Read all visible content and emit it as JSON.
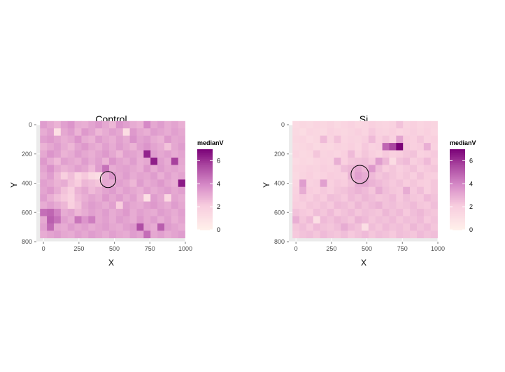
{
  "chart_data": [
    {
      "type": "heatmap",
      "title": "Control",
      "xlabel": "X",
      "ylabel": "Y",
      "xlim": [
        -50,
        1000
      ],
      "ylim": [
        0,
        800
      ],
      "y_reversed": true,
      "x_ticks": [
        0,
        250,
        500,
        750,
        1000
      ],
      "y_ticks": [
        0,
        200,
        400,
        600,
        800
      ],
      "x_tick_labels": [
        "0",
        "250",
        "500",
        "750",
        "1000"
      ],
      "y_tick_labels": [
        "0",
        "200",
        "400",
        "600",
        "800"
      ],
      "grid": true,
      "legend_position": "right",
      "legend": {
        "title": "medianV",
        "min": 0,
        "max": 7,
        "ticks": [
          0,
          2,
          4,
          6
        ],
        "tick_labels": [
          "0",
          "2",
          "4",
          "6"
        ],
        "low_color": "#fff0ea",
        "high_color": "#7a0177"
      },
      "x_centers": [
        0,
        48.7,
        97.4,
        146.1,
        194.7,
        243.4,
        292.1,
        340.8,
        389.5,
        438.2,
        486.8,
        535.5,
        584.2,
        632.9,
        681.6,
        730.3,
        778.9,
        827.6,
        876.3,
        925,
        973.7
      ],
      "y_centers": [
        0,
        50,
        100,
        150,
        200,
        250,
        300,
        350,
        400,
        450,
        500,
        550,
        600,
        650,
        700,
        750
      ],
      "values": [
        [
          3.4,
          3.1,
          2.8,
          3.3,
          3.6,
          3.0,
          2.9,
          3.2,
          3.5,
          3.1,
          2.7,
          3.6,
          3.3,
          3.0,
          2.8,
          3.9,
          3.1,
          3.4,
          3.0,
          3.2,
          2.9
        ],
        [
          3.0,
          3.3,
          1.0,
          3.1,
          3.4,
          2.8,
          3.5,
          3.2,
          2.7,
          3.0,
          3.3,
          3.1,
          1.2,
          3.5,
          3.1,
          2.9,
          3.4,
          3.2,
          3.0,
          3.3,
          3.1
        ],
        [
          3.3,
          3.5,
          3.2,
          2.9,
          3.1,
          3.6,
          3.0,
          2.8,
          3.4,
          3.1,
          2.9,
          3.3,
          3.0,
          3.7,
          3.2,
          3.4,
          3.0,
          2.8,
          3.5,
          3.1,
          3.2
        ],
        [
          2.8,
          3.1,
          3.4,
          3.0,
          2.7,
          3.2,
          3.5,
          3.1,
          2.9,
          3.3,
          3.0,
          3.4,
          3.1,
          2.8,
          3.3,
          3.6,
          3.2,
          3.0,
          2.4,
          3.1,
          3.4
        ],
        [
          3.1,
          3.6,
          3.3,
          2.8,
          3.0,
          3.4,
          3.1,
          2.9,
          3.2,
          3.5,
          3.1,
          2.7,
          3.3,
          3.2,
          3.0,
          6.3,
          3.4,
          3.1,
          3.3,
          3.0,
          3.2
        ],
        [
          3.5,
          3.0,
          2.6,
          3.3,
          3.1,
          2.9,
          3.4,
          3.0,
          3.3,
          2.8,
          3.6,
          3.2,
          3.0,
          3.4,
          2.9,
          3.1,
          6.4,
          3.3,
          3.0,
          5.7,
          3.1
        ],
        [
          3.2,
          3.7,
          3.1,
          2.8,
          3.0,
          3.3,
          3.1,
          2.6,
          3.4,
          4.5,
          3.0,
          3.2,
          3.3,
          3.1,
          2.9,
          3.5,
          3.0,
          3.4,
          3.1,
          3.2,
          3.0
        ],
        [
          3.0,
          3.4,
          2.7,
          2.0,
          2.5,
          1.6,
          2.2,
          1.4,
          1.1,
          3.0,
          3.6,
          3.1,
          3.4,
          3.0,
          3.2,
          3.1,
          3.4,
          2.9,
          3.3,
          3.0,
          3.2
        ],
        [
          3.3,
          3.1,
          2.8,
          3.0,
          2.4,
          2.1,
          2.7,
          2.5,
          2.3,
          3.1,
          3.0,
          3.3,
          3.1,
          2.7,
          3.4,
          3.0,
          3.2,
          3.5,
          3.1,
          2.9,
          6.5
        ],
        [
          3.2,
          3.5,
          3.0,
          2.4,
          2.0,
          2.8,
          3.1,
          2.6,
          2.9,
          3.2,
          3.4,
          3.0,
          3.3,
          3.1,
          2.9,
          3.3,
          3.0,
          3.2,
          3.4,
          3.1,
          3.3
        ],
        [
          3.4,
          2.9,
          2.5,
          2.2,
          1.8,
          2.6,
          2.9,
          3.2,
          3.0,
          3.5,
          3.1,
          3.4,
          3.0,
          3.3,
          2.8,
          1.0,
          3.4,
          3.1,
          1.5,
          3.2,
          3.0
        ],
        [
          3.0,
          3.3,
          3.0,
          2.7,
          1.9,
          2.4,
          3.1,
          3.4,
          3.2,
          3.0,
          3.3,
          2.1,
          3.4,
          3.1,
          3.0,
          3.3,
          3.5,
          3.2,
          3.0,
          3.4,
          3.1
        ],
        [
          4.6,
          4.8,
          4.1,
          3.0,
          3.2,
          2.7,
          3.0,
          3.3,
          3.1,
          3.4,
          3.0,
          3.2,
          3.5,
          3.0,
          3.3,
          3.1,
          3.0,
          3.4,
          3.2,
          3.0,
          3.3
        ],
        [
          3.1,
          5.0,
          4.5,
          3.3,
          3.0,
          4.4,
          3.6,
          4.2,
          3.1,
          3.3,
          3.0,
          3.4,
          3.2,
          3.0,
          3.5,
          3.1,
          3.4,
          3.0,
          3.3,
          2.9,
          3.2
        ],
        [
          3.3,
          4.7,
          3.1,
          3.0,
          3.4,
          3.1,
          3.3,
          3.0,
          3.2,
          3.4,
          3.1,
          3.0,
          3.3,
          3.5,
          5.4,
          3.2,
          3.0,
          5.0,
          3.4,
          3.2,
          3.0
        ],
        [
          3.0,
          3.2,
          3.4,
          3.1,
          3.0,
          3.3,
          3.1,
          3.4,
          3.2,
          3.0,
          3.3,
          3.1,
          3.0,
          3.4,
          3.2,
          4.6,
          3.1,
          3.3,
          3.0,
          3.2,
          3.4
        ]
      ],
      "circle": {
        "x": 455,
        "y": 375,
        "radius": 55
      }
    },
    {
      "type": "heatmap",
      "title": "Si",
      "xlabel": "X",
      "ylabel": "Y",
      "xlim": [
        -50,
        1000
      ],
      "ylim": [
        0,
        800
      ],
      "y_reversed": true,
      "x_ticks": [
        0,
        250,
        500,
        750,
        1000
      ],
      "y_ticks": [
        0,
        200,
        400,
        600,
        800
      ],
      "x_tick_labels": [
        "0",
        "250",
        "500",
        "750",
        "1000"
      ],
      "y_tick_labels": [
        "0",
        "200",
        "400",
        "600",
        "800"
      ],
      "grid": true,
      "legend_position": "right",
      "legend": {
        "title": "medianV",
        "min": 0,
        "max": 7,
        "ticks": [
          0,
          2,
          4,
          6
        ],
        "tick_labels": [
          "0",
          "2",
          "4",
          "6"
        ],
        "low_color": "#fff0ea",
        "high_color": "#7a0177"
      },
      "x_centers": [
        0,
        48.7,
        97.4,
        146.1,
        194.7,
        243.4,
        292.1,
        340.8,
        389.5,
        438.2,
        486.8,
        535.5,
        584.2,
        632.9,
        681.6,
        730.3,
        778.9,
        827.6,
        876.3,
        925,
        973.7
      ],
      "y_centers": [
        0,
        50,
        100,
        150,
        200,
        250,
        300,
        350,
        400,
        450,
        500,
        550,
        600,
        650,
        700,
        750
      ],
      "values": [
        [
          1.3,
          1.5,
          1.4,
          1.6,
          1.5,
          1.7,
          1.4,
          1.6,
          1.8,
          1.5,
          1.6,
          1.9,
          1.7,
          1.6,
          1.8,
          2.4,
          1.7,
          1.9,
          1.6,
          1.8,
          1.7
        ],
        [
          1.4,
          1.2,
          1.6,
          1.5,
          1.4,
          1.8,
          1.6,
          1.5,
          1.7,
          1.9,
          1.6,
          2.2,
          1.8,
          1.7,
          1.9,
          1.6,
          1.8,
          2.0,
          1.7,
          1.9,
          1.6
        ],
        [
          1.5,
          1.6,
          1.3,
          1.5,
          2.6,
          1.7,
          2.4,
          1.6,
          1.8,
          1.7,
          2.0,
          2.6,
          1.9,
          2.3,
          1.8,
          3.2,
          2.1,
          1.9,
          2.3,
          1.8,
          1.9
        ],
        [
          1.4,
          1.5,
          1.7,
          1.4,
          1.6,
          1.5,
          1.8,
          1.7,
          1.9,
          1.6,
          2.2,
          1.8,
          2.0,
          4.8,
          5.6,
          7.0,
          2.2,
          1.9,
          2.1,
          2.9,
          1.8
        ],
        [
          1.6,
          1.4,
          1.5,
          2.3,
          1.7,
          1.8,
          1.6,
          1.9,
          2.6,
          1.8,
          2.3,
          2.0,
          1.7,
          2.2,
          1.9,
          2.1,
          2.3,
          2.4,
          1.8,
          2.0,
          2.2
        ],
        [
          1.3,
          1.5,
          1.4,
          1.6,
          1.8,
          1.7,
          2.9,
          1.9,
          2.3,
          2.4,
          2.5,
          2.2,
          3.4,
          2.7,
          1.2,
          2.4,
          2.6,
          2.0,
          2.2,
          2.6,
          2.1
        ],
        [
          1.5,
          1.6,
          1.8,
          1.7,
          2.0,
          1.8,
          2.0,
          2.5,
          2.7,
          3.1,
          2.7,
          3.5,
          2.5,
          2.1,
          2.3,
          2.0,
          2.2,
          2.4,
          2.0,
          2.2,
          2.3
        ],
        [
          1.4,
          1.7,
          1.9,
          1.6,
          1.8,
          2.1,
          2.0,
          1.9,
          2.8,
          3.3,
          3.0,
          2.6,
          2.3,
          2.5,
          2.3,
          2.1,
          2.3,
          2.0,
          2.4,
          2.1,
          2.0
        ],
        [
          1.6,
          3.4,
          1.8,
          2.0,
          3.3,
          1.9,
          2.2,
          2.1,
          2.4,
          3.0,
          3.1,
          2.8,
          2.6,
          2.4,
          2.2,
          2.4,
          2.1,
          2.3,
          2.1,
          2.0,
          2.3
        ],
        [
          1.8,
          3.0,
          2.1,
          1.9,
          2.2,
          2.0,
          2.3,
          2.4,
          2.6,
          2.8,
          2.6,
          2.3,
          3.0,
          2.5,
          2.3,
          2.2,
          3.0,
          2.2,
          2.5,
          2.0,
          2.3
        ],
        [
          1.9,
          2.2,
          2.0,
          2.3,
          2.1,
          2.5,
          2.4,
          2.2,
          2.6,
          2.4,
          2.7,
          2.5,
          2.3,
          2.4,
          2.6,
          2.2,
          2.5,
          2.3,
          2.2,
          2.6,
          2.4
        ],
        [
          2.1,
          2.0,
          2.3,
          2.2,
          2.4,
          2.2,
          2.6,
          2.5,
          2.3,
          2.7,
          2.4,
          2.6,
          2.8,
          2.4,
          2.5,
          2.3,
          2.4,
          2.6,
          2.3,
          2.2,
          2.5
        ],
        [
          2.4,
          2.2,
          2.1,
          2.5,
          2.3,
          2.6,
          2.2,
          2.4,
          2.6,
          2.3,
          2.5,
          2.4,
          2.3,
          2.7,
          2.4,
          2.6,
          2.2,
          2.5,
          2.7,
          2.4,
          2.3
        ],
        [
          2.9,
          2.3,
          2.6,
          1.1,
          2.6,
          2.4,
          2.7,
          2.5,
          2.3,
          2.8,
          2.6,
          2.3,
          2.5,
          2.4,
          2.6,
          2.3,
          2.5,
          2.4,
          2.6,
          2.2,
          2.4
        ],
        [
          2.3,
          2.5,
          2.2,
          2.6,
          2.4,
          2.3,
          2.5,
          3.0,
          2.6,
          2.4,
          1.1,
          2.5,
          2.3,
          2.6,
          2.4,
          2.5,
          2.3,
          2.7,
          2.4,
          2.6,
          2.3
        ],
        [
          2.2,
          2.4,
          2.5,
          2.3,
          2.6,
          2.4,
          2.3,
          2.5,
          2.2,
          2.4,
          2.6,
          2.3,
          2.5,
          2.4,
          2.2,
          2.5,
          2.4,
          2.3,
          2.6,
          2.4,
          2.5
        ]
      ],
      "circle": {
        "x": 450,
        "y": 340,
        "radius": 62
      }
    }
  ]
}
